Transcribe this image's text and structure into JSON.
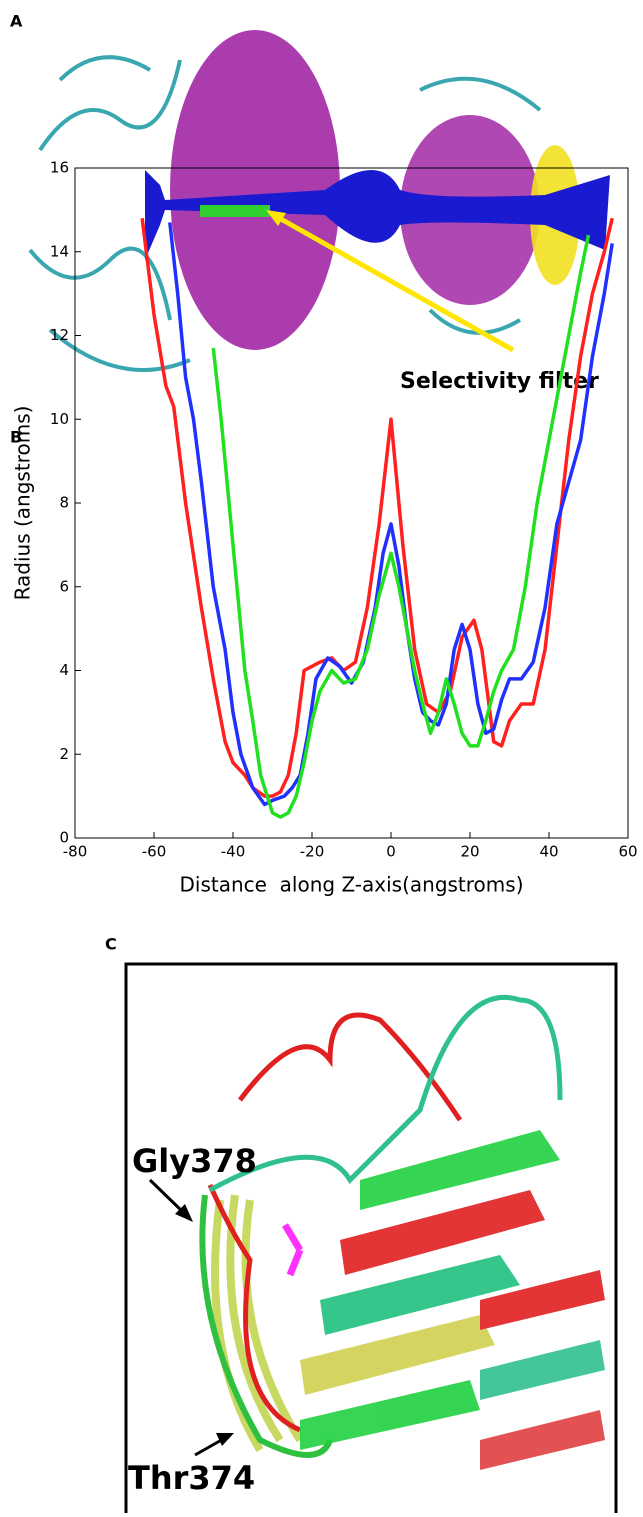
{
  "panels": {
    "a": {
      "label": "A",
      "annotation": "Selectivity filter"
    },
    "b": {
      "label": "B"
    },
    "c": {
      "label": "C",
      "annotations": [
        "Gly378",
        "Thr374"
      ]
    }
  },
  "chart_data": {
    "type": "line",
    "x_label": "Distance  along Z-axis(angstroms)",
    "y_label": "Radius (angstroms)",
    "xlim": [
      -80,
      60
    ],
    "xticks": [
      -80,
      -60,
      -40,
      -20,
      0,
      20,
      40,
      60
    ],
    "ylim": [
      0,
      16
    ],
    "yticks": [
      0,
      2,
      4,
      6,
      8,
      10,
      12,
      14,
      16
    ],
    "series": [
      {
        "color": "#ff2020",
        "x": [
          -63,
          -60,
          -57,
          -55,
          -52,
          -48,
          -45,
          -42,
          -40,
          -37,
          -35,
          -32,
          -30,
          -28,
          -26,
          -24,
          -22,
          -20,
          -18,
          -15,
          -12,
          -9,
          -6,
          -3,
          0,
          3,
          6,
          9,
          12,
          15,
          18,
          21,
          23,
          26,
          28,
          30,
          33,
          36,
          39,
          42,
          45,
          48,
          51,
          54,
          56
        ],
        "values": [
          14.8,
          12.5,
          10.8,
          10.3,
          8,
          5.5,
          3.8,
          2.3,
          1.8,
          1.5,
          1.2,
          1.0,
          1.0,
          1.1,
          1.5,
          2.5,
          4.0,
          4.1,
          4.2,
          4.3,
          4.0,
          4.2,
          5.5,
          7.5,
          10,
          7.0,
          4.5,
          3.2,
          3.0,
          3.5,
          4.8,
          5.2,
          4.5,
          2.3,
          2.2,
          2.8,
          3.2,
          3.2,
          4.5,
          7,
          9.5,
          11.5,
          13,
          14,
          14.8
        ]
      },
      {
        "color": "#2030ff",
        "x": [
          -56,
          -54,
          -52,
          -50,
          -48,
          -45,
          -42,
          -40,
          -38,
          -35,
          -32,
          -30,
          -27,
          -25,
          -23,
          -21,
          -19,
          -16,
          -13,
          -10,
          -7,
          -4,
          -2,
          0,
          2,
          4,
          6,
          8,
          10,
          12,
          14,
          16,
          18,
          20,
          22,
          24,
          26,
          28,
          30,
          33,
          36,
          39,
          42,
          45,
          48,
          51,
          54,
          56
        ],
        "values": [
          14.7,
          13,
          11,
          10.0,
          8.5,
          6,
          4.5,
          3,
          2.0,
          1.2,
          0.8,
          0.9,
          1.0,
          1.2,
          1.5,
          2.5,
          3.8,
          4.3,
          4.1,
          3.7,
          4.2,
          5.5,
          6.8,
          7.5,
          6.5,
          5.0,
          3.8,
          3.0,
          2.8,
          2.7,
          3.2,
          4.5,
          5.1,
          4.5,
          3.2,
          2.5,
          2.6,
          3.3,
          3.8,
          3.8,
          4.2,
          5.5,
          7.5,
          8.5,
          9.5,
          11.5,
          13,
          14.2
        ]
      },
      {
        "color": "#20e020",
        "x": [
          -45,
          -43,
          -41,
          -39,
          -37,
          -35,
          -33,
          -30,
          -28,
          -26,
          -24,
          -22,
          -20,
          -18,
          -15,
          -12,
          -9,
          -6,
          -3,
          0,
          2,
          4,
          6,
          8,
          10,
          12,
          14,
          16,
          18,
          20,
          22,
          24,
          26,
          28,
          31,
          34,
          37,
          40,
          43,
          46,
          48,
          50
        ],
        "values": [
          11.7,
          10,
          8,
          6,
          4,
          2.8,
          1.5,
          0.6,
          0.5,
          0.6,
          1.0,
          1.8,
          2.8,
          3.5,
          4.0,
          3.7,
          3.8,
          4.5,
          5.8,
          6.8,
          6.0,
          5.0,
          4.0,
          3.2,
          2.5,
          3.0,
          3.8,
          3.2,
          2.5,
          2.2,
          2.2,
          2.8,
          3.5,
          4.0,
          4.5,
          6,
          8,
          9.5,
          11,
          12.5,
          13.5,
          14.4
        ]
      }
    ]
  }
}
